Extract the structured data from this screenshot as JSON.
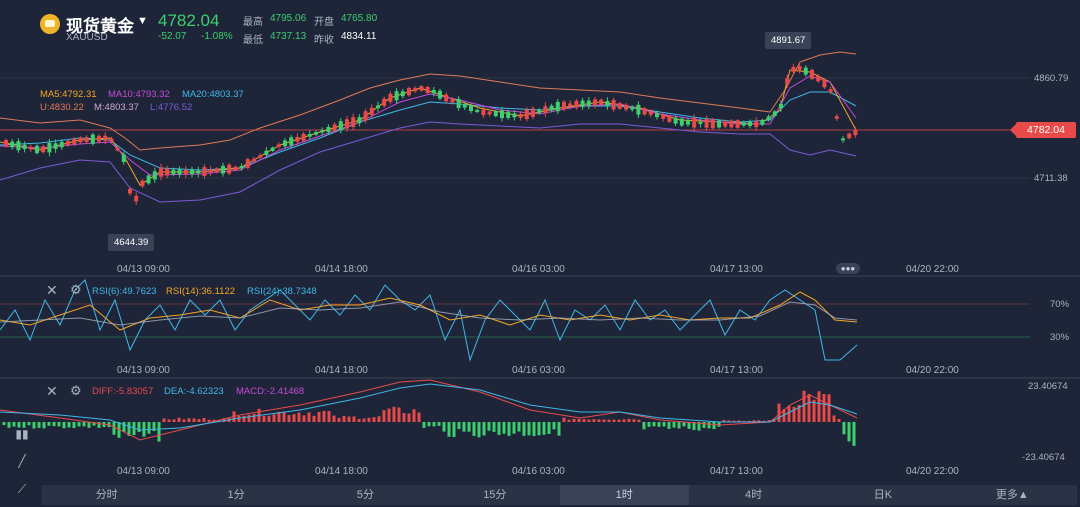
{
  "header": {
    "name": "现货黄金",
    "symbol": "XAUUSD",
    "price": "4782.04",
    "change": "-52.07",
    "change_pct": "-1.08%",
    "stats": [
      {
        "label": "最高",
        "value": "4795.06"
      },
      {
        "label": "开盘",
        "value": "4765.80"
      },
      {
        "label": "最低",
        "value": "4737.13"
      },
      {
        "label": "昨收",
        "value": "4834.11"
      }
    ]
  },
  "main_indicators": {
    "ma5": "MA5:4792.31",
    "ma10": "MA10:4793.32",
    "ma20": "MA20:4803.37",
    "u": "U:4830.22",
    "m": "M:4803.37",
    "l": "L:4776.52"
  },
  "annotations": {
    "high": "4891.67",
    "low": "4644.39"
  },
  "price_axis": [
    "4860.79",
    "4711.38"
  ],
  "current_price_badge": "4782.04",
  "time_labels": [
    "04/13 09:00",
    "04/14 18:00",
    "04/16 03:00",
    "04/17 13:00",
    "04/20 22:00"
  ],
  "rsi": {
    "rsi6": "RSI(6):49.7623",
    "rsi14": "RSI(14):36.1122",
    "rsi24": "RSI(24):38.7348",
    "upper": "70%",
    "lower": "30%"
  },
  "macd": {
    "diff": "DIFF:-5.83057",
    "dea": "DEA:-4.62323",
    "macd": "MACD:-2.41468",
    "upper": "23.40674",
    "lower": "-23.40674"
  },
  "tabs": [
    "分时",
    "1分",
    "5分",
    "15分",
    "1时",
    "4时",
    "日K",
    "更多▲"
  ],
  "active_tab": 4,
  "colors": {
    "up": "#e84a4a",
    "down": "#3ccf6e",
    "ma5": "#f5a623",
    "ma10": "#c84ad8",
    "ma20": "#3fb8e8",
    "boll_u": "#e07a55",
    "boll_m": "#c9a8d8",
    "boll_l": "#7a5ad8"
  }
}
